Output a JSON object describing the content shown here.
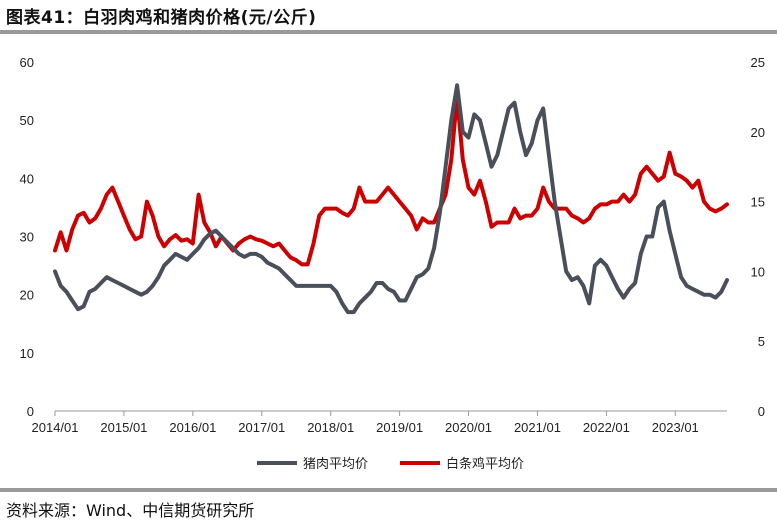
{
  "header": {
    "title": "图表41：白羽肉鸡和猪肉价格(元/公斤)"
  },
  "footer": {
    "source": "资料来源：Wind、中信期货研究所"
  },
  "colors": {
    "pork": "#4a505b",
    "chicken": "#cc0000",
    "axis": "#9a9a9a"
  },
  "chart_data": {
    "type": "line",
    "title": "",
    "x_tick_labels": [
      "2014/01",
      "2015/01",
      "2016/01",
      "2017/01",
      "2018/01",
      "2019/01",
      "2020/01",
      "2021/01",
      "2022/01",
      "2023/01"
    ],
    "x_range": [
      "2014-01",
      "2023-10"
    ],
    "y_left": {
      "range": [
        0,
        60
      ],
      "ticks": [
        0,
        10,
        20,
        30,
        40,
        50,
        60
      ]
    },
    "y_right": {
      "range": [
        0,
        25
      ],
      "ticks": [
        0,
        5,
        10,
        15,
        20,
        25
      ]
    },
    "legend_position": "bottom",
    "grid": false,
    "series": [
      {
        "name": "猪肉平均价",
        "axis": "left",
        "points": [
          [
            "2014-01",
            24
          ],
          [
            "2014-02",
            21.5
          ],
          [
            "2014-03",
            20.5
          ],
          [
            "2014-04",
            19
          ],
          [
            "2014-05",
            17.5
          ],
          [
            "2014-06",
            18
          ],
          [
            "2014-07",
            20.5
          ],
          [
            "2014-08",
            21
          ],
          [
            "2014-09",
            22
          ],
          [
            "2014-10",
            23
          ],
          [
            "2014-11",
            22.5
          ],
          [
            "2014-12",
            22
          ],
          [
            "2015-01",
            21.5
          ],
          [
            "2015-02",
            21
          ],
          [
            "2015-03",
            20.5
          ],
          [
            "2015-04",
            20
          ],
          [
            "2015-05",
            20.5
          ],
          [
            "2015-06",
            21.5
          ],
          [
            "2015-07",
            23
          ],
          [
            "2015-08",
            25
          ],
          [
            "2015-09",
            26
          ],
          [
            "2015-10",
            27
          ],
          [
            "2015-11",
            26.5
          ],
          [
            "2015-12",
            26
          ],
          [
            "2016-01",
            27
          ],
          [
            "2016-02",
            28
          ],
          [
            "2016-03",
            29.5
          ],
          [
            "2016-04",
            30.5
          ],
          [
            "2016-05",
            31
          ],
          [
            "2016-06",
            30
          ],
          [
            "2016-07",
            29
          ],
          [
            "2016-08",
            28
          ],
          [
            "2016-09",
            27
          ],
          [
            "2016-10",
            26.5
          ],
          [
            "2016-11",
            27
          ],
          [
            "2016-12",
            27
          ],
          [
            "2017-01",
            26.5
          ],
          [
            "2017-02",
            25.5
          ],
          [
            "2017-03",
            25
          ],
          [
            "2017-04",
            24.5
          ],
          [
            "2017-05",
            23.5
          ],
          [
            "2017-06",
            22.5
          ],
          [
            "2017-07",
            21.5
          ],
          [
            "2017-08",
            21.5
          ],
          [
            "2017-09",
            21.5
          ],
          [
            "2017-10",
            21.5
          ],
          [
            "2017-11",
            21.5
          ],
          [
            "2017-12",
            21.5
          ],
          [
            "2018-01",
            21.5
          ],
          [
            "2018-02",
            20.5
          ],
          [
            "2018-03",
            18.5
          ],
          [
            "2018-04",
            17
          ],
          [
            "2018-05",
            17
          ],
          [
            "2018-06",
            18.5
          ],
          [
            "2018-07",
            19.5
          ],
          [
            "2018-08",
            20.5
          ],
          [
            "2018-09",
            22
          ],
          [
            "2018-10",
            22
          ],
          [
            "2018-11",
            21
          ],
          [
            "2018-12",
            20.5
          ],
          [
            "2019-01",
            19
          ],
          [
            "2019-02",
            19
          ],
          [
            "2019-03",
            21
          ],
          [
            "2019-04",
            23
          ],
          [
            "2019-05",
            23.5
          ],
          [
            "2019-06",
            24.5
          ],
          [
            "2019-07",
            28
          ],
          [
            "2019-08",
            34
          ],
          [
            "2019-09",
            42
          ],
          [
            "2019-10",
            50
          ],
          [
            "2019-11",
            56
          ],
          [
            "2019-12",
            48
          ],
          [
            "2020-01",
            47
          ],
          [
            "2020-02",
            51
          ],
          [
            "2020-03",
            50
          ],
          [
            "2020-04",
            46
          ],
          [
            "2020-05",
            42
          ],
          [
            "2020-06",
            44
          ],
          [
            "2020-07",
            48
          ],
          [
            "2020-08",
            52
          ],
          [
            "2020-09",
            53
          ],
          [
            "2020-10",
            48
          ],
          [
            "2020-11",
            44
          ],
          [
            "2020-12",
            46
          ],
          [
            "2021-01",
            50
          ],
          [
            "2021-02",
            52
          ],
          [
            "2021-03",
            44
          ],
          [
            "2021-04",
            36
          ],
          [
            "2021-05",
            30
          ],
          [
            "2021-06",
            24
          ],
          [
            "2021-07",
            22.5
          ],
          [
            "2021-08",
            23
          ],
          [
            "2021-09",
            21.5
          ],
          [
            "2021-10",
            18.5
          ],
          [
            "2021-11",
            25
          ],
          [
            "2021-12",
            26
          ],
          [
            "2022-01",
            25
          ],
          [
            "2022-02",
            23
          ],
          [
            "2022-03",
            21
          ],
          [
            "2022-04",
            19.5
          ],
          [
            "2022-05",
            21
          ],
          [
            "2022-06",
            22
          ],
          [
            "2022-07",
            27
          ],
          [
            "2022-08",
            30
          ],
          [
            "2022-09",
            30
          ],
          [
            "2022-10",
            35
          ],
          [
            "2022-11",
            36
          ],
          [
            "2022-12",
            31
          ],
          [
            "2023-01",
            27
          ],
          [
            "2023-02",
            23
          ],
          [
            "2023-03",
            21.5
          ],
          [
            "2023-04",
            21
          ],
          [
            "2023-05",
            20.5
          ],
          [
            "2023-06",
            20
          ],
          [
            "2023-07",
            20
          ],
          [
            "2023-08",
            19.5
          ],
          [
            "2023-09",
            20.5
          ],
          [
            "2023-10",
            22.5
          ]
        ]
      },
      {
        "name": "白条鸡平均价",
        "axis": "right",
        "points": [
          [
            "2014-01",
            11.5
          ],
          [
            "2014-02",
            12.8
          ],
          [
            "2014-03",
            11.5
          ],
          [
            "2014-04",
            13
          ],
          [
            "2014-05",
            14
          ],
          [
            "2014-06",
            14.2
          ],
          [
            "2014-07",
            13.5
          ],
          [
            "2014-08",
            13.8
          ],
          [
            "2014-09",
            14.5
          ],
          [
            "2014-10",
            15.5
          ],
          [
            "2014-11",
            16
          ],
          [
            "2014-12",
            15
          ],
          [
            "2015-01",
            14
          ],
          [
            "2015-02",
            13
          ],
          [
            "2015-03",
            12.3
          ],
          [
            "2015-04",
            12.5
          ],
          [
            "2015-05",
            15
          ],
          [
            "2015-06",
            14
          ],
          [
            "2015-07",
            12.5
          ],
          [
            "2015-08",
            11.8
          ],
          [
            "2015-09",
            12.3
          ],
          [
            "2015-10",
            12.6
          ],
          [
            "2015-11",
            12.2
          ],
          [
            "2015-12",
            12.3
          ],
          [
            "2016-01",
            12
          ],
          [
            "2016-02",
            15.5
          ],
          [
            "2016-03",
            13.5
          ],
          [
            "2016-04",
            12.8
          ],
          [
            "2016-05",
            11.8
          ],
          [
            "2016-06",
            12.5
          ],
          [
            "2016-07",
            12
          ],
          [
            "2016-08",
            11.5
          ],
          [
            "2016-09",
            12
          ],
          [
            "2016-10",
            12.3
          ],
          [
            "2016-11",
            12.5
          ],
          [
            "2016-12",
            12.3
          ],
          [
            "2017-01",
            12.2
          ],
          [
            "2017-02",
            12
          ],
          [
            "2017-03",
            11.8
          ],
          [
            "2017-04",
            12
          ],
          [
            "2017-05",
            11.5
          ],
          [
            "2017-06",
            11
          ],
          [
            "2017-07",
            10.8
          ],
          [
            "2017-08",
            10.5
          ],
          [
            "2017-09",
            10.5
          ],
          [
            "2017-10",
            12
          ],
          [
            "2017-11",
            14
          ],
          [
            "2017-12",
            14.5
          ],
          [
            "2018-01",
            14.5
          ],
          [
            "2018-02",
            14.5
          ],
          [
            "2018-03",
            14.2
          ],
          [
            "2018-04",
            14
          ],
          [
            "2018-05",
            14.5
          ],
          [
            "2018-06",
            16
          ],
          [
            "2018-07",
            15
          ],
          [
            "2018-08",
            15
          ],
          [
            "2018-09",
            15
          ],
          [
            "2018-10",
            15.5
          ],
          [
            "2018-11",
            16
          ],
          [
            "2018-12",
            15.5
          ],
          [
            "2019-01",
            15
          ],
          [
            "2019-02",
            14.5
          ],
          [
            "2019-03",
            14
          ],
          [
            "2019-04",
            13
          ],
          [
            "2019-05",
            13.8
          ],
          [
            "2019-06",
            13.5
          ],
          [
            "2019-07",
            13.5
          ],
          [
            "2019-08",
            14.5
          ],
          [
            "2019-09",
            15.5
          ],
          [
            "2019-10",
            18
          ],
          [
            "2019-11",
            22.5
          ],
          [
            "2019-12",
            18
          ],
          [
            "2020-01",
            16
          ],
          [
            "2020-02",
            15.5
          ],
          [
            "2020-03",
            16.5
          ],
          [
            "2020-04",
            15
          ],
          [
            "2020-05",
            13.2
          ],
          [
            "2020-06",
            13.5
          ],
          [
            "2020-07",
            13.5
          ],
          [
            "2020-08",
            13.5
          ],
          [
            "2020-09",
            14.5
          ],
          [
            "2020-10",
            13.8
          ],
          [
            "2020-11",
            14
          ],
          [
            "2020-12",
            14
          ],
          [
            "2021-01",
            14.5
          ],
          [
            "2021-02",
            16
          ],
          [
            "2021-03",
            15
          ],
          [
            "2021-04",
            14.5
          ],
          [
            "2021-05",
            14.5
          ],
          [
            "2021-06",
            14.5
          ],
          [
            "2021-07",
            14
          ],
          [
            "2021-08",
            13.8
          ],
          [
            "2021-09",
            13.5
          ],
          [
            "2021-10",
            13.8
          ],
          [
            "2021-11",
            14.5
          ],
          [
            "2021-12",
            14.8
          ],
          [
            "2022-01",
            14.8
          ],
          [
            "2022-02",
            15
          ],
          [
            "2022-03",
            15
          ],
          [
            "2022-04",
            15.5
          ],
          [
            "2022-05",
            15
          ],
          [
            "2022-06",
            15.5
          ],
          [
            "2022-07",
            17
          ],
          [
            "2022-08",
            17.5
          ],
          [
            "2022-09",
            17
          ],
          [
            "2022-10",
            16.5
          ],
          [
            "2022-11",
            16.8
          ],
          [
            "2022-12",
            18.5
          ],
          [
            "2023-01",
            17
          ],
          [
            "2023-02",
            16.8
          ],
          [
            "2023-03",
            16.5
          ],
          [
            "2023-04",
            16
          ],
          [
            "2023-05",
            16.5
          ],
          [
            "2023-06",
            15
          ],
          [
            "2023-07",
            14.5
          ],
          [
            "2023-08",
            14.3
          ],
          [
            "2023-09",
            14.5
          ],
          [
            "2023-10",
            14.8
          ]
        ]
      }
    ]
  }
}
